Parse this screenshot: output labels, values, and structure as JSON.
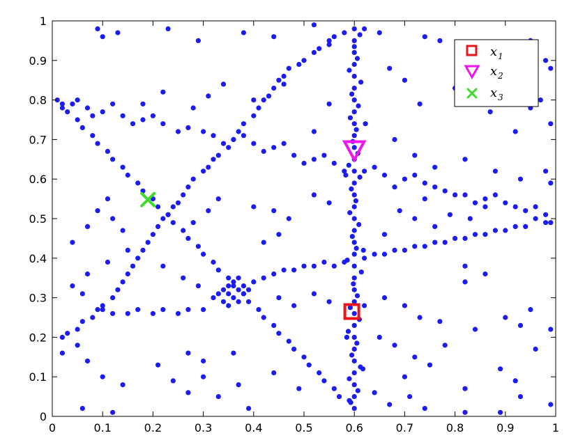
{
  "chart_data": {
    "type": "scatter",
    "title": "",
    "xlabel": "",
    "ylabel": "",
    "xlim": [
      0,
      1
    ],
    "ylim": [
      0,
      1
    ],
    "grid": false,
    "legend_position": "top-right",
    "x_ticks": [
      0,
      0.1,
      0.2,
      0.3,
      0.4,
      0.5,
      0.6,
      0.7,
      0.8,
      0.9,
      1
    ],
    "y_ticks": [
      0,
      0.1,
      0.2,
      0.3,
      0.4,
      0.5,
      0.6,
      0.7,
      0.8,
      0.9,
      1
    ],
    "x_tick_labels": [
      "0",
      "0.1",
      "0.2",
      "0.3",
      "0.4",
      "0.5",
      "0.6",
      "0.7",
      "0.8",
      "0.9",
      "1"
    ],
    "y_tick_labels": [
      "0",
      "0.1",
      "0.2",
      "0.3",
      "0.4",
      "0.5",
      "0.6",
      "0.7",
      "0.8",
      "0.9",
      "1"
    ],
    "point_color": "#1c1cf0",
    "background_points": [
      [
        0.6,
        0.02
      ],
      [
        0.6,
        0.05
      ],
      [
        0.6,
        0.08
      ],
      [
        0.6,
        0.11
      ],
      [
        0.6,
        0.14
      ],
      [
        0.6,
        0.17
      ],
      [
        0.6,
        0.2
      ],
      [
        0.6,
        0.23
      ],
      [
        0.6,
        0.26
      ],
      [
        0.6,
        0.29
      ],
      [
        0.6,
        0.32
      ],
      [
        0.6,
        0.35
      ],
      [
        0.6,
        0.38
      ],
      [
        0.6,
        0.41
      ],
      [
        0.6,
        0.44
      ],
      [
        0.6,
        0.47
      ],
      [
        0.6,
        0.5
      ],
      [
        0.6,
        0.53
      ],
      [
        0.6,
        0.56
      ],
      [
        0.6,
        0.59
      ],
      [
        0.6,
        0.62
      ],
      [
        0.6,
        0.65
      ],
      [
        0.6,
        0.68
      ],
      [
        0.6,
        0.71
      ],
      [
        0.6,
        0.74
      ],
      [
        0.6,
        0.77
      ],
      [
        0.6,
        0.8
      ],
      [
        0.6,
        0.83
      ],
      [
        0.6,
        0.86
      ],
      [
        0.6,
        0.89
      ],
      [
        0.6,
        0.92
      ],
      [
        0.6,
        0.95
      ],
      [
        0.6,
        0.98
      ],
      [
        0.593,
        0.035
      ],
      [
        0.607,
        0.065
      ],
      [
        0.59,
        0.095
      ],
      [
        0.612,
        0.125
      ],
      [
        0.595,
        0.155
      ],
      [
        0.605,
        0.185
      ],
      [
        0.588,
        0.215
      ],
      [
        0.61,
        0.245
      ],
      [
        0.592,
        0.275
      ],
      [
        0.606,
        0.305
      ],
      [
        0.598,
        0.335
      ],
      [
        0.614,
        0.365
      ],
      [
        0.586,
        0.395
      ],
      [
        0.604,
        0.425
      ],
      [
        0.596,
        0.455
      ],
      [
        0.609,
        0.485
      ],
      [
        0.591,
        0.515
      ],
      [
        0.603,
        0.545
      ],
      [
        0.594,
        0.575
      ],
      [
        0.611,
        0.605
      ],
      [
        0.589,
        0.635
      ],
      [
        0.607,
        0.665
      ],
      [
        0.597,
        0.695
      ],
      [
        0.604,
        0.725
      ],
      [
        0.592,
        0.755
      ],
      [
        0.608,
        0.785
      ],
      [
        0.595,
        0.815
      ],
      [
        0.613,
        0.845
      ],
      [
        0.59,
        0.875
      ],
      [
        0.606,
        0.905
      ],
      [
        0.6,
        0.935
      ],
      [
        0.611,
        0.965
      ],
      [
        0.617,
        0.12
      ],
      [
        0.618,
        0.42
      ],
      [
        0.583,
        0.61
      ],
      [
        0.62,
        0.28
      ],
      [
        0.585,
        0.2
      ],
      [
        0.622,
        0.74
      ],
      [
        0.01,
        0.8
      ],
      [
        0.04,
        0.79
      ],
      [
        0.07,
        0.78
      ],
      [
        0.1,
        0.77
      ],
      [
        0.14,
        0.76
      ],
      [
        0.18,
        0.75
      ],
      [
        0.22,
        0.74
      ],
      [
        0.27,
        0.73
      ],
      [
        0.32,
        0.71
      ],
      [
        0.36,
        0.7
      ],
      [
        0.4,
        0.69
      ],
      [
        0.44,
        0.68
      ],
      [
        0.48,
        0.66
      ],
      [
        0.52,
        0.65
      ],
      [
        0.56,
        0.64
      ],
      [
        0.62,
        0.62
      ],
      [
        0.66,
        0.61
      ],
      [
        0.7,
        0.6
      ],
      [
        0.74,
        0.59
      ],
      [
        0.78,
        0.57
      ],
      [
        0.82,
        0.56
      ],
      [
        0.86,
        0.55
      ],
      [
        0.9,
        0.54
      ],
      [
        0.94,
        0.52
      ],
      [
        0.98,
        0.51
      ],
      [
        0.02,
        0.78
      ],
      [
        0.05,
        0.8
      ],
      [
        0.08,
        0.76
      ],
      [
        0.12,
        0.79
      ],
      [
        0.16,
        0.74
      ],
      [
        0.2,
        0.76
      ],
      [
        0.25,
        0.72
      ],
      [
        0.3,
        0.72
      ],
      [
        0.34,
        0.69
      ],
      [
        0.38,
        0.71
      ],
      [
        0.42,
        0.67
      ],
      [
        0.46,
        0.69
      ],
      [
        0.5,
        0.64
      ],
      [
        0.54,
        0.66
      ],
      [
        0.58,
        0.62
      ],
      [
        0.64,
        0.63
      ],
      [
        0.68,
        0.58
      ],
      [
        0.72,
        0.61
      ],
      [
        0.76,
        0.58
      ],
      [
        0.8,
        0.56
      ],
      [
        0.84,
        0.54
      ],
      [
        0.88,
        0.56
      ],
      [
        0.92,
        0.53
      ],
      [
        0.96,
        0.53
      ],
      [
        0.99,
        0.49
      ],
      [
        0.02,
        0.2
      ],
      [
        0.05,
        0.22
      ],
      [
        0.08,
        0.25
      ],
      [
        0.1,
        0.28
      ],
      [
        0.13,
        0.32
      ],
      [
        0.15,
        0.36
      ],
      [
        0.17,
        0.4
      ],
      [
        0.19,
        0.44
      ],
      [
        0.21,
        0.48
      ],
      [
        0.23,
        0.51
      ],
      [
        0.25,
        0.54
      ],
      [
        0.27,
        0.58
      ],
      [
        0.3,
        0.62
      ],
      [
        0.32,
        0.65
      ],
      [
        0.35,
        0.68
      ],
      [
        0.37,
        0.72
      ],
      [
        0.4,
        0.76
      ],
      [
        0.42,
        0.8
      ],
      [
        0.44,
        0.83
      ],
      [
        0.46,
        0.86
      ],
      [
        0.49,
        0.89
      ],
      [
        0.52,
        0.92
      ],
      [
        0.55,
        0.95
      ],
      [
        0.58,
        0.97
      ],
      [
        0.03,
        0.21
      ],
      [
        0.06,
        0.24
      ],
      [
        0.09,
        0.27
      ],
      [
        0.12,
        0.3
      ],
      [
        0.14,
        0.34
      ],
      [
        0.16,
        0.38
      ],
      [
        0.18,
        0.42
      ],
      [
        0.2,
        0.46
      ],
      [
        0.22,
        0.5
      ],
      [
        0.24,
        0.53
      ],
      [
        0.26,
        0.56
      ],
      [
        0.28,
        0.6
      ],
      [
        0.31,
        0.63
      ],
      [
        0.33,
        0.66
      ],
      [
        0.36,
        0.7
      ],
      [
        0.38,
        0.74
      ],
      [
        0.41,
        0.78
      ],
      [
        0.43,
        0.81
      ],
      [
        0.45,
        0.85
      ],
      [
        0.47,
        0.88
      ],
      [
        0.5,
        0.9
      ],
      [
        0.53,
        0.93
      ],
      [
        0.56,
        0.96
      ],
      [
        0.02,
        0.79
      ],
      [
        0.05,
        0.75
      ],
      [
        0.08,
        0.71
      ],
      [
        0.11,
        0.67
      ],
      [
        0.14,
        0.63
      ],
      [
        0.17,
        0.59
      ],
      [
        0.2,
        0.55
      ],
      [
        0.23,
        0.51
      ],
      [
        0.26,
        0.47
      ],
      [
        0.29,
        0.43
      ],
      [
        0.32,
        0.39
      ],
      [
        0.35,
        0.35
      ],
      [
        0.38,
        0.31
      ],
      [
        0.41,
        0.27
      ],
      [
        0.44,
        0.23
      ],
      [
        0.47,
        0.19
      ],
      [
        0.5,
        0.15
      ],
      [
        0.53,
        0.11
      ],
      [
        0.56,
        0.07
      ],
      [
        0.59,
        0.04
      ],
      [
        0.03,
        0.77
      ],
      [
        0.06,
        0.73
      ],
      [
        0.09,
        0.69
      ],
      [
        0.12,
        0.65
      ],
      [
        0.15,
        0.61
      ],
      [
        0.18,
        0.57
      ],
      [
        0.21,
        0.53
      ],
      [
        0.24,
        0.49
      ],
      [
        0.27,
        0.45
      ],
      [
        0.3,
        0.41
      ],
      [
        0.33,
        0.37
      ],
      [
        0.36,
        0.33
      ],
      [
        0.39,
        0.29
      ],
      [
        0.42,
        0.25
      ],
      [
        0.45,
        0.21
      ],
      [
        0.48,
        0.17
      ],
      [
        0.51,
        0.13
      ],
      [
        0.54,
        0.09
      ],
      [
        0.57,
        0.05
      ],
      [
        0.1,
        0.27
      ],
      [
        0.15,
        0.26
      ],
      [
        0.2,
        0.26
      ],
      [
        0.25,
        0.26
      ],
      [
        0.3,
        0.27
      ],
      [
        0.34,
        0.29
      ],
      [
        0.37,
        0.32
      ],
      [
        0.4,
        0.34
      ],
      [
        0.44,
        0.36
      ],
      [
        0.48,
        0.37
      ],
      [
        0.52,
        0.38
      ],
      [
        0.56,
        0.38
      ],
      [
        0.62,
        0.4
      ],
      [
        0.66,
        0.41
      ],
      [
        0.7,
        0.42
      ],
      [
        0.74,
        0.43
      ],
      [
        0.78,
        0.44
      ],
      [
        0.82,
        0.45
      ],
      [
        0.86,
        0.46
      ],
      [
        0.9,
        0.47
      ],
      [
        0.94,
        0.48
      ],
      [
        0.98,
        0.49
      ],
      [
        0.12,
        0.26
      ],
      [
        0.17,
        0.27
      ],
      [
        0.22,
        0.27
      ],
      [
        0.27,
        0.27
      ],
      [
        0.32,
        0.3
      ],
      [
        0.35,
        0.31
      ],
      [
        0.38,
        0.33
      ],
      [
        0.42,
        0.35
      ],
      [
        0.46,
        0.37
      ],
      [
        0.5,
        0.38
      ],
      [
        0.54,
        0.39
      ],
      [
        0.58,
        0.39
      ],
      [
        0.64,
        0.41
      ],
      [
        0.68,
        0.42
      ],
      [
        0.72,
        0.43
      ],
      [
        0.76,
        0.44
      ],
      [
        0.8,
        0.45
      ],
      [
        0.84,
        0.46
      ],
      [
        0.88,
        0.47
      ],
      [
        0.92,
        0.48
      ],
      [
        0.96,
        0.5
      ],
      [
        0.36,
        0.3
      ],
      [
        0.35,
        0.33
      ],
      [
        0.37,
        0.29
      ],
      [
        0.34,
        0.32
      ],
      [
        0.38,
        0.31
      ],
      [
        0.36,
        0.34
      ],
      [
        0.33,
        0.31
      ],
      [
        0.39,
        0.32
      ],
      [
        0.35,
        0.28
      ],
      [
        0.37,
        0.35
      ],
      [
        0.09,
        0.98
      ],
      [
        0.1,
        0.96
      ],
      [
        0.13,
        0.97
      ],
      [
        0.23,
        0.98
      ],
      [
        0.29,
        0.95
      ],
      [
        0.38,
        0.97
      ],
      [
        0.44,
        0.96
      ],
      [
        0.52,
        0.99
      ],
      [
        0.55,
        0.94
      ],
      [
        0.62,
        0.98
      ],
      [
        0.65,
        0.97
      ],
      [
        0.74,
        0.96
      ],
      [
        0.77,
        0.95
      ],
      [
        0.83,
        0.93
      ],
      [
        0.9,
        0.91
      ],
      [
        0.95,
        0.95
      ],
      [
        0.98,
        0.9
      ],
      [
        0.99,
        0.88
      ],
      [
        0.18,
        0.79
      ],
      [
        0.22,
        0.82
      ],
      [
        0.31,
        0.81
      ],
      [
        0.34,
        0.84
      ],
      [
        0.28,
        0.78
      ],
      [
        0.4,
        0.8
      ],
      [
        0.46,
        0.84
      ],
      [
        0.55,
        0.79
      ],
      [
        0.52,
        0.72
      ],
      [
        0.67,
        0.88
      ],
      [
        0.7,
        0.85
      ],
      [
        0.73,
        0.79
      ],
      [
        0.8,
        0.83
      ],
      [
        0.87,
        0.77
      ],
      [
        0.92,
        0.72
      ],
      [
        0.95,
        0.78
      ],
      [
        0.97,
        0.8
      ],
      [
        0.99,
        0.74
      ],
      [
        0.68,
        0.7
      ],
      [
        0.72,
        0.66
      ],
      [
        0.76,
        0.63
      ],
      [
        0.82,
        0.65
      ],
      [
        0.88,
        0.62
      ],
      [
        0.93,
        0.6
      ],
      [
        0.98,
        0.62
      ],
      [
        0.99,
        0.59
      ],
      [
        0.07,
        0.48
      ],
      [
        0.09,
        0.52
      ],
      [
        0.11,
        0.55
      ],
      [
        0.04,
        0.44
      ],
      [
        0.12,
        0.5
      ],
      [
        0.14,
        0.47
      ],
      [
        0.28,
        0.49
      ],
      [
        0.31,
        0.52
      ],
      [
        0.33,
        0.55
      ],
      [
        0.4,
        0.53
      ],
      [
        0.44,
        0.52
      ],
      [
        0.47,
        0.5
      ],
      [
        0.52,
        0.56
      ],
      [
        0.55,
        0.54
      ],
      [
        0.45,
        0.46
      ],
      [
        0.42,
        0.44
      ],
      [
        0.69,
        0.52
      ],
      [
        0.72,
        0.5
      ],
      [
        0.76,
        0.48
      ],
      [
        0.79,
        0.51
      ],
      [
        0.83,
        0.5
      ],
      [
        0.86,
        0.53
      ],
      [
        0.66,
        0.46
      ],
      [
        0.74,
        0.55
      ],
      [
        0.04,
        0.33
      ],
      [
        0.07,
        0.36
      ],
      [
        0.11,
        0.39
      ],
      [
        0.06,
        0.31
      ],
      [
        0.15,
        0.42
      ],
      [
        0.22,
        0.38
      ],
      [
        0.26,
        0.35
      ],
      [
        0.29,
        0.33
      ],
      [
        0.45,
        0.3
      ],
      [
        0.48,
        0.28
      ],
      [
        0.52,
        0.31
      ],
      [
        0.55,
        0.29
      ],
      [
        0.66,
        0.3
      ],
      [
        0.7,
        0.28
      ],
      [
        0.73,
        0.25
      ],
      [
        0.77,
        0.24
      ],
      [
        0.82,
        0.38
      ],
      [
        0.82,
        0.34
      ],
      [
        0.86,
        0.36
      ],
      [
        0.9,
        0.25
      ],
      [
        0.93,
        0.23
      ],
      [
        0.95,
        0.27
      ],
      [
        0.99,
        0.22
      ],
      [
        0.65,
        0.2
      ],
      [
        0.68,
        0.18
      ],
      [
        0.72,
        0.15
      ],
      [
        0.75,
        0.13
      ],
      [
        0.7,
        0.1
      ],
      [
        0.78,
        0.18
      ],
      [
        0.84,
        0.22
      ],
      [
        0.89,
        0.12
      ],
      [
        0.92,
        0.09
      ],
      [
        0.96,
        0.17
      ],
      [
        0.02,
        0.16
      ],
      [
        0.05,
        0.18
      ],
      [
        0.07,
        0.14
      ],
      [
        0.1,
        0.1
      ],
      [
        0.14,
        0.08
      ],
      [
        0.06,
        0.02
      ],
      [
        0.12,
        0.01
      ],
      [
        0.21,
        0.13
      ],
      [
        0.24,
        0.09
      ],
      [
        0.27,
        0.06
      ],
      [
        0.3,
        0.1
      ],
      [
        0.33,
        0.05
      ],
      [
        0.37,
        0.08
      ],
      [
        0.39,
        0.02
      ],
      [
        0.27,
        0.16
      ],
      [
        0.3,
        0.14
      ],
      [
        0.36,
        0.16
      ],
      [
        0.44,
        0.11
      ],
      [
        0.49,
        0.07
      ],
      [
        0.64,
        0.06
      ],
      [
        0.67,
        0.03
      ],
      [
        0.71,
        0.05
      ],
      [
        0.74,
        0.02
      ],
      [
        0.82,
        0.07
      ],
      [
        0.82,
        0.01
      ],
      [
        0.89,
        0.01
      ],
      [
        0.93,
        0.05
      ],
      [
        0.99,
        0.03
      ]
    ],
    "series": [
      {
        "name": "x_1",
        "marker": "square",
        "color": "#e8141c",
        "x": 0.595,
        "y": 0.265
      },
      {
        "name": "x_2",
        "marker": "triangle-down",
        "color": "#f014f0",
        "x": 0.6,
        "y": 0.67
      },
      {
        "name": "x_3",
        "marker": "x",
        "color": "#3cdc28",
        "x": 0.19,
        "y": 0.548
      }
    ]
  },
  "legend": {
    "entries": [
      {
        "base": "x",
        "sub": "1"
      },
      {
        "base": "x",
        "sub": "2"
      },
      {
        "base": "x",
        "sub": "3"
      }
    ]
  }
}
